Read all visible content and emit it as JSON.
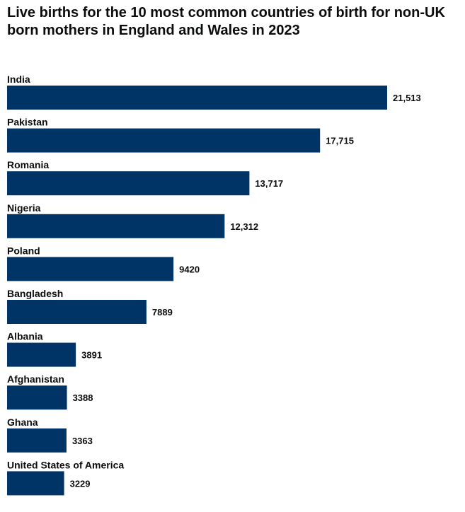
{
  "chart_data": {
    "type": "bar",
    "orientation": "horizontal",
    "title": "Live births for the 10 most common countries of birth for non-UK born mothers in England and Wales in 2023",
    "categories": [
      "India",
      "Pakistan",
      "Romania",
      "Nigeria",
      "Poland",
      "Bangladesh",
      "Albania",
      "Afghanistan",
      "Ghana",
      "United States of America"
    ],
    "values": [
      21513,
      17715,
      13717,
      12312,
      9420,
      7889,
      3891,
      3388,
      3363,
      3229
    ],
    "value_labels": [
      "21,513",
      "17,715",
      "13,717",
      "12,312",
      "9420",
      "7889",
      "3891",
      "3388",
      "3363",
      "3229"
    ],
    "xlim": [
      0,
      21513
    ],
    "grid": false,
    "legend": "none",
    "bar_color": "#003366"
  }
}
